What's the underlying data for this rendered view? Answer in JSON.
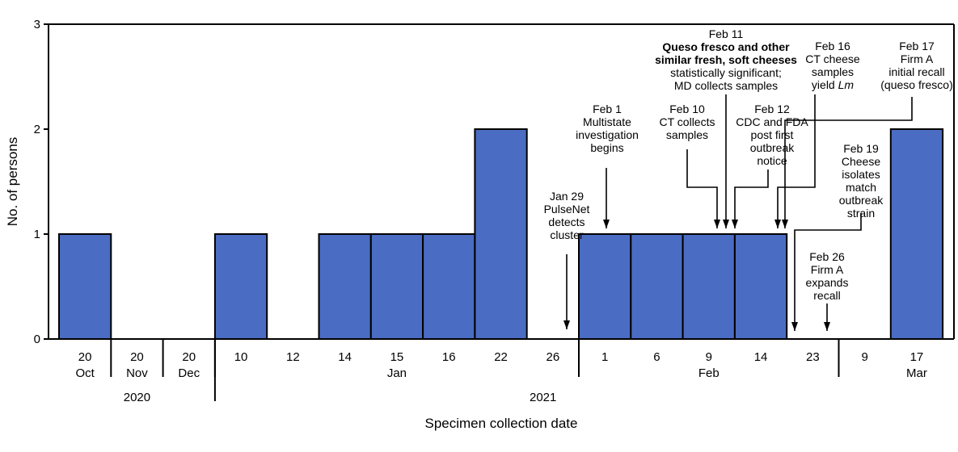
{
  "chart_data": {
    "type": "bar",
    "title": "",
    "ylabel": "No. of persons",
    "xlabel": "Specimen collection date",
    "ylim": [
      0,
      3
    ],
    "yticks": [
      0,
      1,
      2,
      3
    ],
    "categories": [
      "20",
      "20",
      "20",
      "10",
      "12",
      "14",
      "15",
      "16",
      "22",
      "26",
      "1",
      "6",
      "9",
      "14",
      "23",
      "9",
      "17"
    ],
    "values": [
      1,
      0,
      0,
      1,
      0,
      1,
      1,
      1,
      2,
      0,
      1,
      1,
      1,
      1,
      0,
      0,
      2
    ],
    "month_labels": [
      {
        "label": "Oct",
        "from": 0,
        "to": 0
      },
      {
        "label": "Nov",
        "from": 1,
        "to": 1
      },
      {
        "label": "Dec",
        "from": 2,
        "to": 2
      },
      {
        "label": "Jan",
        "from": 3,
        "to": 9
      },
      {
        "label": "Feb",
        "from": 10,
        "to": 14
      },
      {
        "label": "Mar",
        "from": 16,
        "to": 16
      }
    ],
    "year_labels": [
      {
        "label": "2020",
        "from": 0,
        "to": 2
      },
      {
        "label": "2021",
        "from": 3,
        "to": 16
      }
    ],
    "annotations": [
      {
        "lines": [
          "Jan 29",
          "PulseNet",
          "detects",
          "cluster"
        ],
        "bold_lines": [],
        "italic": "",
        "target": 9.4
      },
      {
        "lines": [
          "Feb 1",
          "Multistate",
          "investigation",
          "begins"
        ],
        "bold_lines": [],
        "italic": "",
        "target": 10.5
      },
      {
        "lines": [
          "Feb 10",
          "CT collects",
          "samples"
        ],
        "bold_lines": [],
        "italic": "",
        "target": 12.5
      },
      {
        "lines": [
          "Feb 11",
          "Queso fresco and other",
          "similar fresh, soft cheeses",
          "statistically significant;",
          "MD collects samples"
        ],
        "bold_lines": [
          1,
          2
        ],
        "italic": "",
        "target": 12.7
      },
      {
        "lines": [
          "Feb 12",
          "CDC and FDA",
          "post first",
          "outbreak",
          "notice"
        ],
        "bold_lines": [],
        "italic": "",
        "target": 12.9
      },
      {
        "lines": [
          "Feb 16",
          "CT cheese",
          "samples",
          "yield "
        ],
        "bold_lines": [],
        "italic": "Lm",
        "target": 13.65
      },
      {
        "lines": [
          "Feb 17",
          "Firm A",
          "initial recall",
          "(queso fresco)"
        ],
        "bold_lines": [],
        "italic": "",
        "target": 13.8
      },
      {
        "lines": [
          "Feb 19",
          "Cheese",
          "isolates",
          "match",
          "outbreak",
          "strain"
        ],
        "bold_lines": [],
        "italic": "",
        "target": 14.15
      },
      {
        "lines": [
          "Feb 26",
          "Firm A",
          "expands",
          "recall"
        ],
        "bold_lines": [],
        "italic": "",
        "target": 14.8
      }
    ]
  }
}
